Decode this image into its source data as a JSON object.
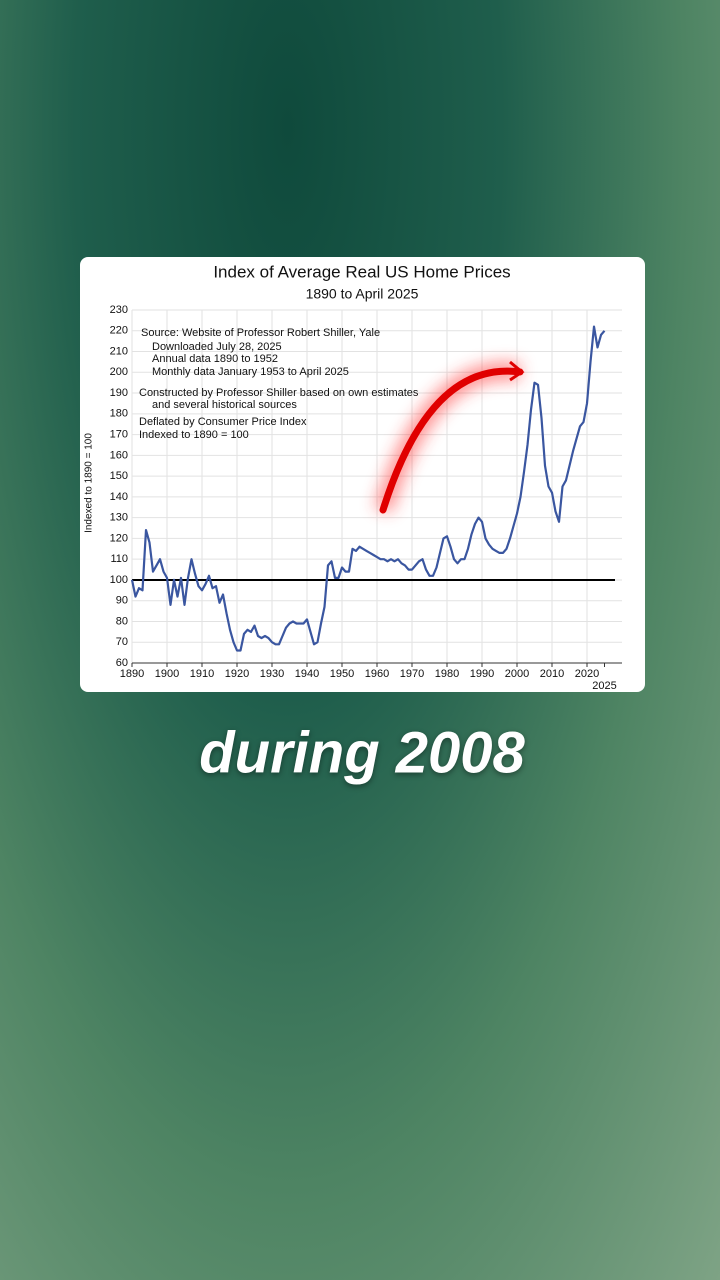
{
  "chart_data": {
    "type": "line",
    "title": "Index of Average Real US Home Prices",
    "subtitle": "1890 to April 2025",
    "y_label": "Indexed to 1890 = 100",
    "annotations": [
      "Source:  Website of Professor Robert Shiller, Yale",
      "Downloaded July 28, 2025",
      "Annual data 1890 to 1952",
      "Monthly data January 1953 to April 2025",
      "Constructed by Professor Shiller based on own estimates",
      "and several historical sources",
      "Deflated by Consumer Price Index",
      "Indexed to 1890 = 100"
    ],
    "reference_line": 100,
    "color": "#3a56a0",
    "grid": true,
    "xlim": [
      1890,
      2030
    ],
    "xticks": [
      1890,
      1900,
      1910,
      1920,
      1930,
      1940,
      1950,
      1960,
      1970,
      1980,
      1990,
      2000,
      2010,
      2020,
      2025
    ],
    "ylim": [
      60,
      230
    ],
    "yticks": [
      60,
      70,
      80,
      90,
      100,
      110,
      120,
      130,
      140,
      150,
      160,
      170,
      180,
      190,
      200,
      210,
      220,
      230
    ],
    "x": [
      1890,
      1891,
      1892,
      1893,
      1894,
      1895,
      1896,
      1897,
      1898,
      1899,
      1900,
      1901,
      1902,
      1903,
      1904,
      1905,
      1906,
      1907,
      1908,
      1909,
      1910,
      1911,
      1912,
      1913,
      1914,
      1915,
      1916,
      1917,
      1918,
      1919,
      1920,
      1921,
      1922,
      1923,
      1924,
      1925,
      1926,
      1927,
      1928,
      1929,
      1930,
      1931,
      1932,
      1933,
      1934,
      1935,
      1936,
      1937,
      1938,
      1939,
      1940,
      1941,
      1942,
      1943,
      1944,
      1945,
      1946,
      1947,
      1948,
      1949,
      1950,
      1951,
      1952,
      1953,
      1954,
      1955,
      1956,
      1957,
      1958,
      1959,
      1960,
      1961,
      1962,
      1963,
      1964,
      1965,
      1966,
      1967,
      1968,
      1969,
      1970,
      1971,
      1972,
      1973,
      1974,
      1975,
      1976,
      1977,
      1978,
      1979,
      1980,
      1981,
      1982,
      1983,
      1984,
      1985,
      1986,
      1987,
      1988,
      1989,
      1990,
      1991,
      1992,
      1993,
      1994,
      1995,
      1996,
      1997,
      1998,
      1999,
      2000,
      2001,
      2002,
      2003,
      2004,
      2005,
      2006,
      2007,
      2008,
      2009,
      2010,
      2011,
      2012,
      2013,
      2014,
      2015,
      2016,
      2017,
      2018,
      2019,
      2020,
      2021,
      2022,
      2023,
      2024,
      2025
    ],
    "values": [
      100,
      92,
      96,
      95,
      124,
      118,
      104,
      107,
      110,
      104,
      101,
      88,
      100,
      92,
      101,
      88,
      101,
      110,
      103,
      97,
      95,
      98,
      102,
      96,
      97,
      89,
      93,
      84,
      76,
      70,
      66,
      66,
      74,
      76,
      75,
      78,
      73,
      72,
      73,
      72,
      70,
      69,
      69,
      73,
      77,
      79,
      80,
      79,
      79,
      79,
      81,
      75,
      69,
      70,
      79,
      87,
      107,
      109,
      101,
      101,
      106,
      104,
      104,
      115,
      114,
      116,
      115,
      114,
      113,
      112,
      111,
      110,
      110,
      109,
      110,
      109,
      110,
      108,
      107,
      105,
      105,
      107,
      109,
      110,
      105,
      102,
      102,
      106,
      113,
      120,
      121,
      116,
      110,
      108,
      110,
      110,
      115,
      122,
      127,
      130,
      128,
      120,
      117,
      115,
      114,
      113,
      113,
      115,
      120,
      126,
      132,
      140,
      152,
      165,
      182,
      195,
      194,
      178,
      155,
      145,
      142,
      133,
      128,
      145,
      148,
      155,
      162,
      168,
      174,
      176,
      185,
      205,
      222,
      212,
      218,
      220
    ]
  },
  "caption": "during 2008"
}
